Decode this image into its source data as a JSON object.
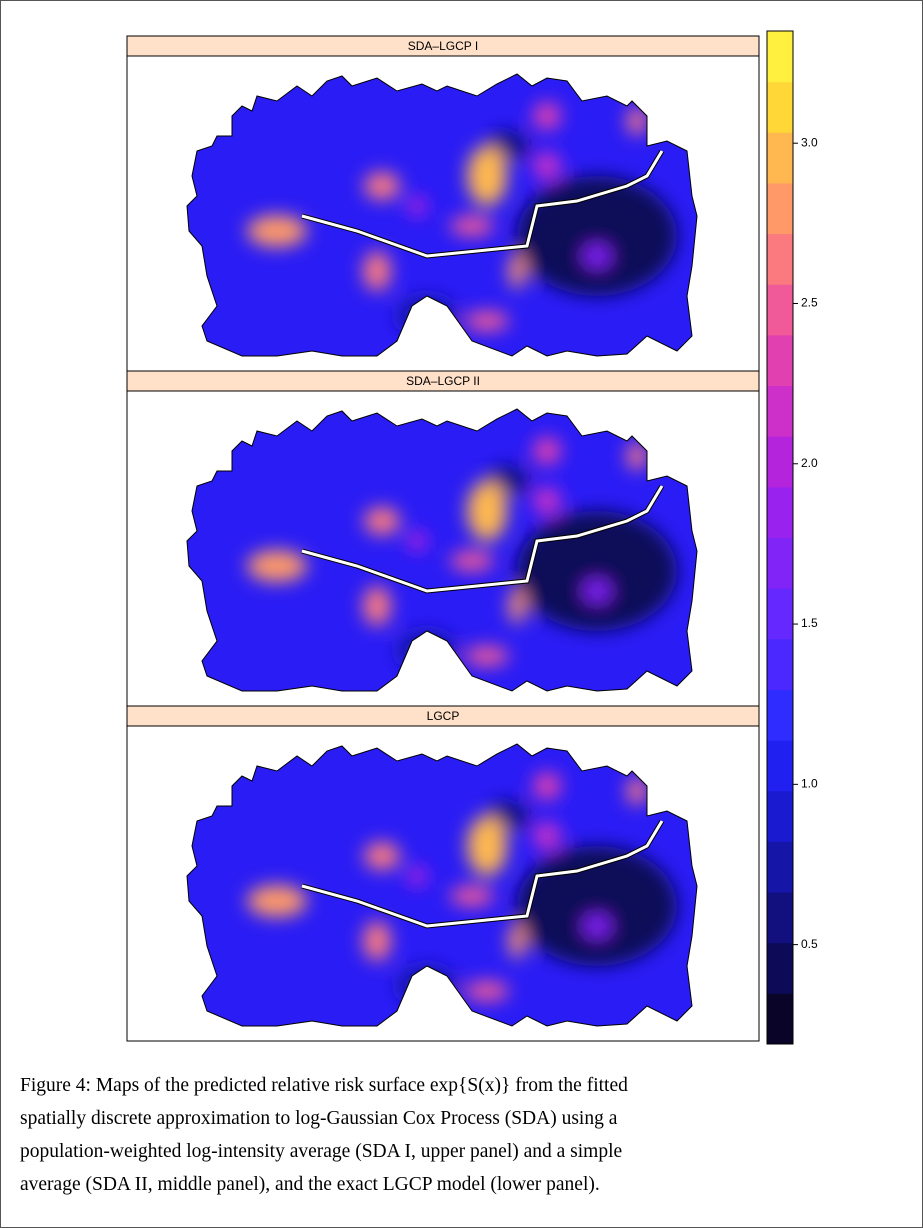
{
  "figure": {
    "panels": [
      {
        "title": "SDA–LGCP I"
      },
      {
        "title": "SDA–LGCP II"
      },
      {
        "title": "LGCP"
      }
    ],
    "colorbar": {
      "ylim": [
        0.19,
        3.35
      ],
      "yticks": [
        0.5,
        1.0,
        1.5,
        2.0,
        2.5,
        3.0
      ],
      "tick_labels": [
        "0.5",
        "1.0",
        "1.5",
        "2.0",
        "2.5",
        "3.0"
      ],
      "colors": [
        "#0a0528",
        "#0d0a58",
        "#11107e",
        "#1515a8",
        "#1a1ad0",
        "#2020f0",
        "#2f2cff",
        "#4a28ff",
        "#6528ff",
        "#8024f8",
        "#9a22ee",
        "#b424dc",
        "#cc30c8",
        "#e040b0",
        "#f05a98",
        "#fa7a80",
        "#ff9a68",
        "#ffb850",
        "#ffd838",
        "#fff040"
      ]
    },
    "caption": [
      "Figure 4: Maps of the predicted relative risk surface exp{S(x)} from the fitted",
      "spatially discrete approximation to log-Gaussian Cox Process (SDA) using a",
      "population-weighted log-intensity average (SDA I, upper panel) and a simple",
      "average (SDA II, middle panel), and the exact LGCP model (lower panel)."
    ]
  }
}
